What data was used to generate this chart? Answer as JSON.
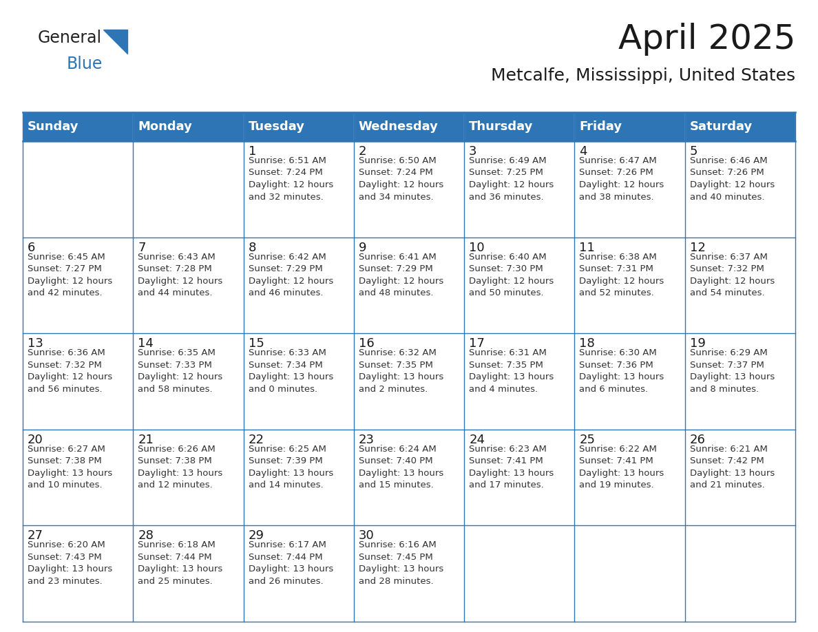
{
  "title": "April 2025",
  "subtitle": "Metcalfe, Mississippi, United States",
  "header_bg_color": "#2E75B6",
  "header_text_color": "#FFFFFF",
  "cell_bg_color": "#FFFFFF",
  "cell_border_color": "#2E75B6",
  "day_text_color": "#1a1a1a",
  "info_text_color": "#333333",
  "day_headers": [
    "Sunday",
    "Monday",
    "Tuesday",
    "Wednesday",
    "Thursday",
    "Friday",
    "Saturday"
  ],
  "weeks": [
    [
      {
        "day": "",
        "info": ""
      },
      {
        "day": "",
        "info": ""
      },
      {
        "day": "1",
        "info": "Sunrise: 6:51 AM\nSunset: 7:24 PM\nDaylight: 12 hours\nand 32 minutes."
      },
      {
        "day": "2",
        "info": "Sunrise: 6:50 AM\nSunset: 7:24 PM\nDaylight: 12 hours\nand 34 minutes."
      },
      {
        "day": "3",
        "info": "Sunrise: 6:49 AM\nSunset: 7:25 PM\nDaylight: 12 hours\nand 36 minutes."
      },
      {
        "day": "4",
        "info": "Sunrise: 6:47 AM\nSunset: 7:26 PM\nDaylight: 12 hours\nand 38 minutes."
      },
      {
        "day": "5",
        "info": "Sunrise: 6:46 AM\nSunset: 7:26 PM\nDaylight: 12 hours\nand 40 minutes."
      }
    ],
    [
      {
        "day": "6",
        "info": "Sunrise: 6:45 AM\nSunset: 7:27 PM\nDaylight: 12 hours\nand 42 minutes."
      },
      {
        "day": "7",
        "info": "Sunrise: 6:43 AM\nSunset: 7:28 PM\nDaylight: 12 hours\nand 44 minutes."
      },
      {
        "day": "8",
        "info": "Sunrise: 6:42 AM\nSunset: 7:29 PM\nDaylight: 12 hours\nand 46 minutes."
      },
      {
        "day": "9",
        "info": "Sunrise: 6:41 AM\nSunset: 7:29 PM\nDaylight: 12 hours\nand 48 minutes."
      },
      {
        "day": "10",
        "info": "Sunrise: 6:40 AM\nSunset: 7:30 PM\nDaylight: 12 hours\nand 50 minutes."
      },
      {
        "day": "11",
        "info": "Sunrise: 6:38 AM\nSunset: 7:31 PM\nDaylight: 12 hours\nand 52 minutes."
      },
      {
        "day": "12",
        "info": "Sunrise: 6:37 AM\nSunset: 7:32 PM\nDaylight: 12 hours\nand 54 minutes."
      }
    ],
    [
      {
        "day": "13",
        "info": "Sunrise: 6:36 AM\nSunset: 7:32 PM\nDaylight: 12 hours\nand 56 minutes."
      },
      {
        "day": "14",
        "info": "Sunrise: 6:35 AM\nSunset: 7:33 PM\nDaylight: 12 hours\nand 58 minutes."
      },
      {
        "day": "15",
        "info": "Sunrise: 6:33 AM\nSunset: 7:34 PM\nDaylight: 13 hours\nand 0 minutes."
      },
      {
        "day": "16",
        "info": "Sunrise: 6:32 AM\nSunset: 7:35 PM\nDaylight: 13 hours\nand 2 minutes."
      },
      {
        "day": "17",
        "info": "Sunrise: 6:31 AM\nSunset: 7:35 PM\nDaylight: 13 hours\nand 4 minutes."
      },
      {
        "day": "18",
        "info": "Sunrise: 6:30 AM\nSunset: 7:36 PM\nDaylight: 13 hours\nand 6 minutes."
      },
      {
        "day": "19",
        "info": "Sunrise: 6:29 AM\nSunset: 7:37 PM\nDaylight: 13 hours\nand 8 minutes."
      }
    ],
    [
      {
        "day": "20",
        "info": "Sunrise: 6:27 AM\nSunset: 7:38 PM\nDaylight: 13 hours\nand 10 minutes."
      },
      {
        "day": "21",
        "info": "Sunrise: 6:26 AM\nSunset: 7:38 PM\nDaylight: 13 hours\nand 12 minutes."
      },
      {
        "day": "22",
        "info": "Sunrise: 6:25 AM\nSunset: 7:39 PM\nDaylight: 13 hours\nand 14 minutes."
      },
      {
        "day": "23",
        "info": "Sunrise: 6:24 AM\nSunset: 7:40 PM\nDaylight: 13 hours\nand 15 minutes."
      },
      {
        "day": "24",
        "info": "Sunrise: 6:23 AM\nSunset: 7:41 PM\nDaylight: 13 hours\nand 17 minutes."
      },
      {
        "day": "25",
        "info": "Sunrise: 6:22 AM\nSunset: 7:41 PM\nDaylight: 13 hours\nand 19 minutes."
      },
      {
        "day": "26",
        "info": "Sunrise: 6:21 AM\nSunset: 7:42 PM\nDaylight: 13 hours\nand 21 minutes."
      }
    ],
    [
      {
        "day": "27",
        "info": "Sunrise: 6:20 AM\nSunset: 7:43 PM\nDaylight: 13 hours\nand 23 minutes."
      },
      {
        "day": "28",
        "info": "Sunrise: 6:18 AM\nSunset: 7:44 PM\nDaylight: 13 hours\nand 25 minutes."
      },
      {
        "day": "29",
        "info": "Sunrise: 6:17 AM\nSunset: 7:44 PM\nDaylight: 13 hours\nand 26 minutes."
      },
      {
        "day": "30",
        "info": "Sunrise: 6:16 AM\nSunset: 7:45 PM\nDaylight: 13 hours\nand 28 minutes."
      },
      {
        "day": "",
        "info": ""
      },
      {
        "day": "",
        "info": ""
      },
      {
        "day": "",
        "info": ""
      }
    ]
  ],
  "logo_color": "#2E75B6",
  "title_fontsize": 36,
  "subtitle_fontsize": 18,
  "header_fontsize": 13,
  "day_num_fontsize": 13,
  "info_fontsize": 9.5,
  "figwidth": 11.88,
  "figheight": 9.18
}
